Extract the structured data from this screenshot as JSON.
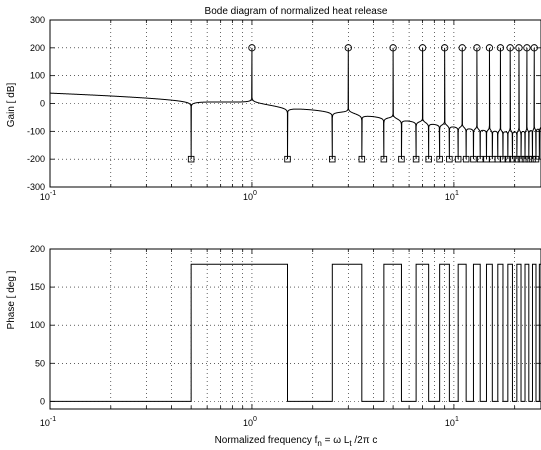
{
  "chart_data": [
    {
      "type": "line",
      "title": "Bode diagram of normalized heat release",
      "xlabel": "",
      "ylabel": "Gain [ dB]",
      "xscale": "log",
      "xlim": [
        0.1,
        27
      ],
      "ylim": [
        -300,
        300
      ],
      "yticks": [
        -300,
        -200,
        -100,
        0,
        100,
        200,
        300
      ],
      "xticks": [
        {
          "value": 0.1,
          "base": "10",
          "exp": "-1"
        },
        {
          "value": 1,
          "base": "10",
          "exp": "0"
        },
        {
          "value": 10,
          "base": "10",
          "exp": "1"
        }
      ],
      "grid": true,
      "pole_frequencies": [
        1,
        3,
        5,
        7,
        9,
        11,
        13,
        15,
        17,
        19,
        21,
        23,
        25
      ],
      "pole_value": 200,
      "zero_frequencies": [
        0.5,
        1.5,
        2.5,
        3.5,
        4.5,
        5.5,
        6.5,
        7.5,
        8.5,
        9.5,
        10.5,
        11.5,
        12.5,
        13.5,
        14.5,
        15.5,
        16.5,
        17.5,
        18.5,
        19.5,
        20.5,
        21.5,
        22.5,
        23.5,
        24.5,
        25.5,
        26.5
      ],
      "zero_value": -200,
      "series": [
        {
          "marker_pole": "circle",
          "marker_zero": "square"
        }
      ]
    },
    {
      "type": "line",
      "title": "",
      "xlabel_parts": {
        "a": "Normalized frequency f",
        "sub1": "n",
        "b": " = ω L",
        "sub2": "t",
        "c": " /2π c"
      },
      "ylabel": "Phase [ deg ]",
      "xscale": "log",
      "xlim": [
        0.1,
        27
      ],
      "ylim": [
        -10,
        200
      ],
      "yticks": [
        0,
        50,
        100,
        150,
        200
      ],
      "xticks": [
        {
          "value": 0.1,
          "base": "10",
          "exp": "-1"
        },
        {
          "value": 1,
          "base": "10",
          "exp": "0"
        },
        {
          "value": 10,
          "base": "10",
          "exp": "1"
        }
      ],
      "grid": true,
      "phase_high": 180,
      "phase_low": 0,
      "switch_frequencies": [
        0.5,
        1.5,
        2.5,
        3.5,
        4.5,
        5.5,
        6.5,
        7.5,
        8.5,
        9.5,
        10.5,
        11.5,
        12.5,
        13.5,
        14.5,
        15.5,
        16.5,
        17.5,
        18.5,
        19.5,
        20.5,
        21.5,
        22.5,
        23.5,
        24.5,
        25.5,
        26.5
      ]
    }
  ]
}
